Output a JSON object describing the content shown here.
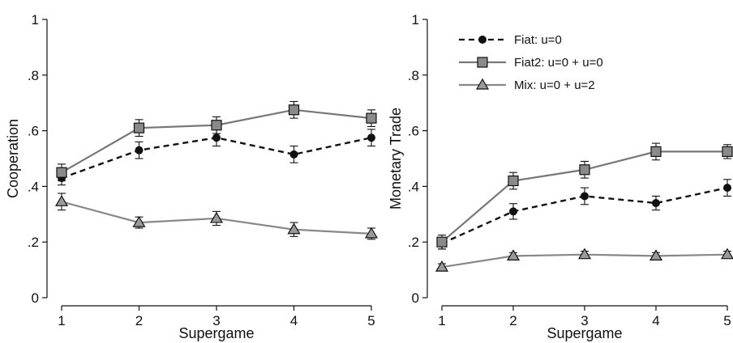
{
  "chart_data": [
    {
      "type": "line",
      "xlabel": "Supergame",
      "ylabel": "Cooperation",
      "x": [
        1,
        2,
        3,
        4,
        5
      ],
      "xticks": [
        "1",
        "2",
        "3",
        "4",
        "5"
      ],
      "ylim": [
        0,
        1
      ],
      "yticks": [
        0,
        0.2,
        0.4,
        0.6,
        0.8,
        1
      ],
      "ytick_labels": [
        "0",
        ".2",
        ".4",
        ".6",
        ".8",
        "1"
      ],
      "grid": false,
      "legend": "none",
      "series": [
        {
          "key": "fiat",
          "values": [
            0.43,
            0.53,
            0.575,
            0.515,
            0.575
          ],
          "err": [
            0.025,
            0.03,
            0.03,
            0.03,
            0.03
          ],
          "color": "#111111",
          "dashed": true,
          "marker": "circle"
        },
        {
          "key": "fiat2",
          "values": [
            0.45,
            0.61,
            0.62,
            0.675,
            0.645
          ],
          "err": [
            0.03,
            0.03,
            0.03,
            0.03,
            0.03
          ],
          "color": "#777777",
          "dashed": false,
          "marker": "square"
        },
        {
          "key": "mix",
          "values": [
            0.345,
            0.27,
            0.285,
            0.245,
            0.23
          ],
          "err": [
            0.03,
            0.02,
            0.025,
            0.025,
            0.02
          ],
          "color": "#888888",
          "dashed": false,
          "marker": "triangle"
        }
      ]
    },
    {
      "type": "line",
      "xlabel": "Supergame",
      "ylabel": "Monetary Trade",
      "x": [
        1,
        2,
        3,
        4,
        5
      ],
      "xticks": [
        "1",
        "2",
        "3",
        "4",
        "5"
      ],
      "ylim": [
        0,
        1
      ],
      "yticks": [
        0,
        0.2,
        0.4,
        0.6,
        0.8,
        1
      ],
      "ytick_labels": [
        "0",
        ".2",
        ".4",
        ".6",
        ".8",
        "1"
      ],
      "grid": false,
      "legend": "top-left",
      "series": [
        {
          "key": "fiat",
          "name": "Fiat: u=0",
          "values": [
            0.195,
            0.31,
            0.365,
            0.34,
            0.395
          ],
          "err": [
            0.02,
            0.028,
            0.03,
            0.025,
            0.03
          ],
          "color": "#111111",
          "dashed": true,
          "marker": "circle"
        },
        {
          "key": "fiat2",
          "name": "Fiat2: u=0 +  u=0",
          "values": [
            0.2,
            0.42,
            0.46,
            0.525,
            0.525
          ],
          "err": [
            0.025,
            0.03,
            0.03,
            0.03,
            0.025
          ],
          "color": "#777777",
          "dashed": false,
          "marker": "square"
        },
        {
          "key": "mix",
          "name": "Mix: u=0 + u=2",
          "values": [
            0.11,
            0.15,
            0.155,
            0.15,
            0.155
          ],
          "err": [
            0.012,
            0.012,
            0.012,
            0.012,
            0.012
          ],
          "color": "#888888",
          "dashed": false,
          "marker": "triangle"
        }
      ]
    }
  ]
}
